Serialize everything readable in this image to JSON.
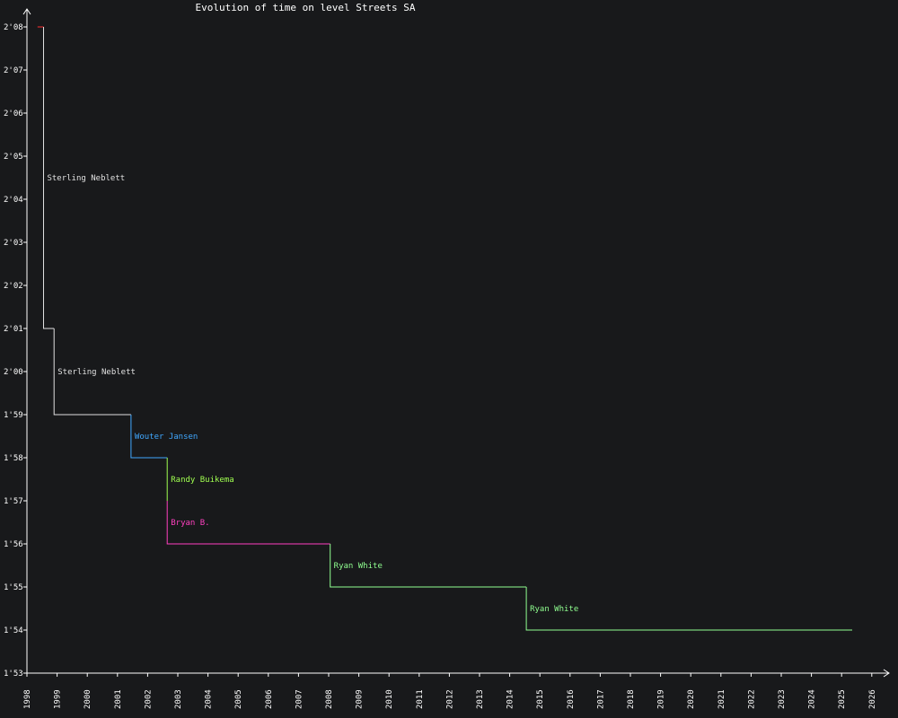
{
  "chart_data": {
    "type": "line",
    "title": "Evolution of time on level Streets SA",
    "xlabel": "",
    "ylabel": "",
    "xlim": [
      1998,
      2026.5
    ],
    "ylim": [
      113,
      129
    ],
    "x_ticks": [
      "1998",
      "1999",
      "2000",
      "2001",
      "2002",
      "2003",
      "2004",
      "2005",
      "2006",
      "2007",
      "2008",
      "2009",
      "2010",
      "2011",
      "2012",
      "2013",
      "2014",
      "2015",
      "2016",
      "2017",
      "2018",
      "2019",
      "2020",
      "2021",
      "2022",
      "2023",
      "2024",
      "2025",
      "2026"
    ],
    "y_ticks": [
      {
        "value": 113,
        "label": "1'53"
      },
      {
        "value": 114,
        "label": "1'54"
      },
      {
        "value": 115,
        "label": "1'55"
      },
      {
        "value": 116,
        "label": "1'56"
      },
      {
        "value": 117,
        "label": "1'57"
      },
      {
        "value": 118,
        "label": "1'58"
      },
      {
        "value": 119,
        "label": "1'59"
      },
      {
        "value": 120,
        "label": "2'00"
      },
      {
        "value": 121,
        "label": "2'01"
      },
      {
        "value": 122,
        "label": "2'02"
      },
      {
        "value": 123,
        "label": "2'03"
      },
      {
        "value": 124,
        "label": "2'04"
      },
      {
        "value": 125,
        "label": "2'05"
      },
      {
        "value": 126,
        "label": "2'06"
      },
      {
        "value": 127,
        "label": "2'07"
      },
      {
        "value": 128,
        "label": "2'08"
      }
    ],
    "grid": false,
    "segments": [
      {
        "label": "",
        "color": "#ff3030",
        "points": [
          [
            1998.35,
            128
          ],
          [
            1998.55,
            128
          ]
        ]
      },
      {
        "label": "Sterling Neblett",
        "color": "#e0e0e0",
        "points": [
          [
            1998.55,
            128
          ],
          [
            1998.55,
            121
          ],
          [
            1998.9,
            121
          ]
        ]
      },
      {
        "label": "Sterling Neblett",
        "color": "#e0e0e0",
        "points": [
          [
            1998.9,
            121
          ],
          [
            1998.9,
            119
          ],
          [
            2001.45,
            119
          ]
        ]
      },
      {
        "label": "Wouter Jansen",
        "color": "#40a8ff",
        "points": [
          [
            2001.45,
            119
          ],
          [
            2001.45,
            118
          ],
          [
            2002.65,
            118
          ]
        ]
      },
      {
        "label": "Randy Buikema",
        "color": "#a0ff50",
        "points": [
          [
            2002.65,
            118
          ],
          [
            2002.65,
            117
          ]
        ]
      },
      {
        "label": "Bryan B.",
        "color": "#ff40c0",
        "points": [
          [
            2002.65,
            117
          ],
          [
            2002.65,
            116
          ],
          [
            2008.05,
            116
          ]
        ]
      },
      {
        "label": "Ryan White",
        "color": "#90ff90",
        "points": [
          [
            2008.05,
            116
          ],
          [
            2008.05,
            115
          ],
          [
            2014.55,
            115
          ]
        ]
      },
      {
        "label": "Ryan White",
        "color": "#90ff90",
        "points": [
          [
            2014.55,
            115
          ],
          [
            2014.55,
            114
          ],
          [
            2025.35,
            114
          ]
        ]
      }
    ]
  }
}
